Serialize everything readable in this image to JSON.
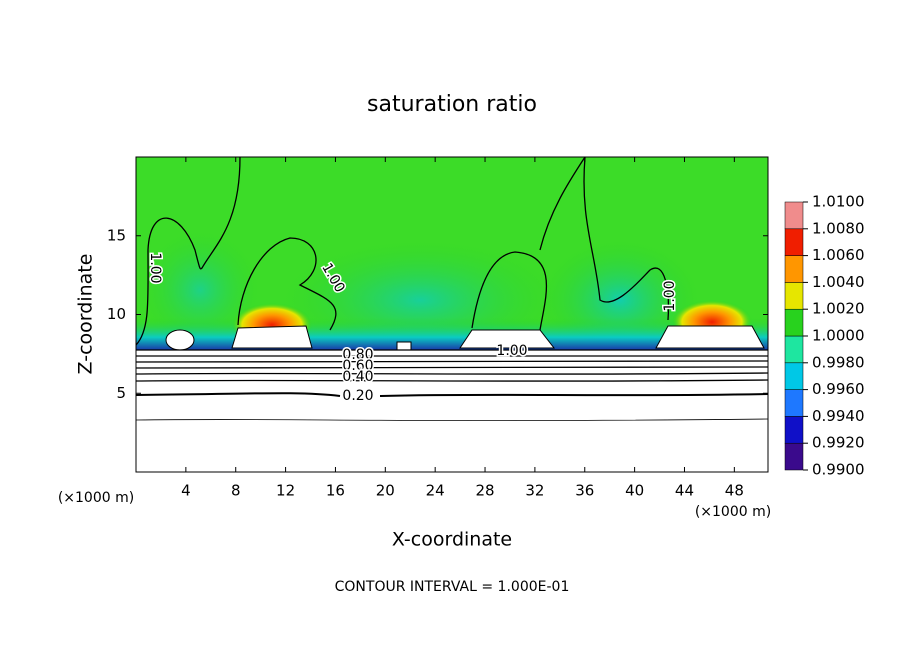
{
  "chart_data": {
    "type": "contour",
    "title": "saturation ratio",
    "x_label": "X-coordinate",
    "y_label": "Z-coordinate",
    "x_unit_label": "(×1000 m)",
    "y_unit_label": "(×1000 m)",
    "xlim": [
      0,
      50.7
    ],
    "xticks": [
      4,
      8,
      12,
      16,
      20,
      24,
      28,
      32,
      36,
      40,
      44,
      48
    ],
    "ylim": [
      0,
      20
    ],
    "yticks": [
      5,
      10,
      15
    ],
    "colorbar": {
      "ticks": [
        {
          "value": 0.99,
          "label": "0.9900"
        },
        {
          "value": 0.992,
          "label": "0.9920"
        },
        {
          "value": 0.994,
          "label": "0.9940"
        },
        {
          "value": 0.996,
          "label": "0.9960"
        },
        {
          "value": 0.998,
          "label": "0.9980"
        },
        {
          "value": 1.0,
          "label": "1.0000"
        },
        {
          "value": 1.002,
          "label": "1.0020"
        },
        {
          "value": 1.004,
          "label": "1.0040"
        },
        {
          "value": 1.006,
          "label": "1.0060"
        },
        {
          "value": 1.008,
          "label": "1.0080"
        },
        {
          "value": 1.01,
          "label": "1.0100"
        }
      ],
      "colors": [
        "#3a0a8c",
        "#1010c8",
        "#1e78ff",
        "#00c8e6",
        "#1ee6a0",
        "#28d21e",
        "#e6e600",
        "#ff9600",
        "#f01e00",
        "#f08c8c"
      ]
    },
    "contour_labels": [
      "1.00",
      "1.00",
      "1.00",
      "1.00",
      "0.80",
      "0.60",
      "0.40",
      "0.20"
    ],
    "footer": "CONTOUR INTERVAL = 1.000E-01"
  }
}
